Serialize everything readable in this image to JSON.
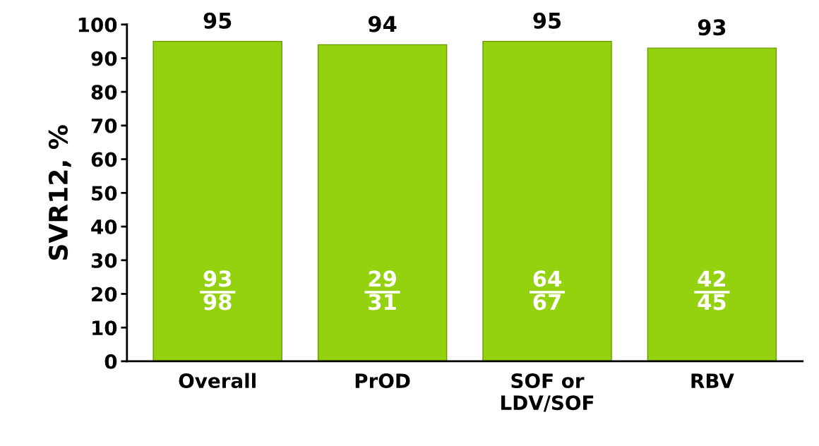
{
  "chart_data": {
    "type": "bar",
    "ylabel": "SVR12, %",
    "categories": [
      "Overall",
      "PrOD",
      "SOF or\nLDV/SOF",
      "RBV"
    ],
    "values": [
      95,
      94,
      95,
      93
    ],
    "color": "#94d10f",
    "ylim": [
      0,
      100
    ],
    "yticks": [
      0,
      10,
      20,
      30,
      40,
      50,
      60,
      70,
      80,
      90,
      100
    ],
    "data_labels": true,
    "grid": false,
    "legend": false,
    "annotations": [
      "93\n98",
      "29\n31",
      "64\n67",
      "42\n45"
    ]
  }
}
